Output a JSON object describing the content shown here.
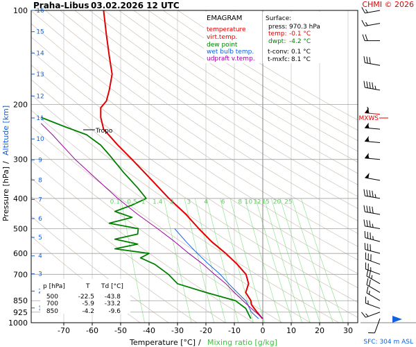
{
  "header": {
    "station": "Praha-Libus",
    "datetime": "03.02.2026 12 UTC",
    "copyright": "CHMI © 2026"
  },
  "legend": {
    "title": "EMAGRAM",
    "items": [
      {
        "label": "temperature",
        "color": "#e00000"
      },
      {
        "label": "virt.temp.",
        "color": "#e00000"
      },
      {
        "label": "dew point",
        "color": "#008000"
      },
      {
        "label": "wet bulb temp.",
        "color": "#1060e0"
      },
      {
        "label": "udpraft v.temp.",
        "color": "#a000a0"
      }
    ]
  },
  "surface": {
    "title": "Surface:",
    "rows": [
      {
        "label": "press:",
        "value": "970.3 hPa",
        "color": "#000000"
      },
      {
        "label": "temp:",
        "value": "-0.1 °C",
        "color": "#e00000"
      },
      {
        "label": "dwpt:",
        "value": "-4.2 °C",
        "color": "#008000"
      }
    ],
    "tconv": {
      "label": "t-conv:",
      "value": "0.1 °C"
    },
    "tmxfc": {
      "label": "t-mxfc:",
      "value": "8.1 °C"
    }
  },
  "table": {
    "headers": [
      "p [hPa]",
      "T",
      "Td [°C]"
    ],
    "rows": [
      [
        "500",
        "-22.5",
        "-43.8"
      ],
      [
        "700",
        "-5.9",
        "-33.2"
      ],
      [
        "850",
        "-4.2",
        "-9.6"
      ]
    ]
  },
  "annotations": {
    "tropo": "Tropo",
    "mxws": "MXWS",
    "sfc": "SFC: 304 m ASL"
  },
  "axes": {
    "ylabel_left": "Pressure [hPa]",
    "ylabel_sep": "/",
    "ylabel_right": "Altitude [km]",
    "xlabel_left": "Temperature [°C]",
    "xlabel_sep": "/",
    "xlabel_right": "Mixing ratio [g/kg]"
  },
  "chart_data": {
    "type": "line",
    "title": "Praha-Libus 03.02.2026 12 UTC",
    "xlabel": "Temperature [°C] / Mixing ratio [g/kg]",
    "ylabel": "Pressure [hPa] / Altitude [km]",
    "xlim": [
      -80,
      35
    ],
    "ylim": [
      1000,
      100
    ],
    "y_scale": "log",
    "x_ticks": [
      -70,
      -60,
      -50,
      -40,
      -30,
      -20,
      -10,
      0,
      10,
      20,
      30
    ],
    "pressure_ticks": [
      100,
      200,
      300,
      400,
      500,
      600,
      700,
      850,
      925,
      1000
    ],
    "altitude_ticks": [
      {
        "km": "1",
        "p": 897
      },
      {
        "km": "2",
        "p": 792
      },
      {
        "km": "3",
        "p": 697
      },
      {
        "km": "4",
        "p": 611
      },
      {
        "km": "5",
        "p": 533
      },
      {
        "km": "6",
        "p": 464
      },
      {
        "km": "7",
        "p": 403
      },
      {
        "km": "8",
        "p": 349
      },
      {
        "km": "9",
        "p": 301
      },
      {
        "km": "10",
        "p": 258
      },
      {
        "km": "11",
        "p": 221
      },
      {
        "km": "12",
        "p": 188
      },
      {
        "km": "13",
        "p": 160
      },
      {
        "km": "14",
        "p": 137
      },
      {
        "km": "15",
        "p": 117
      },
      {
        "km": "16",
        "p": 100
      }
    ],
    "mixing_ratio_labels": [
      "0.1",
      "0.5",
      "1",
      "1.4",
      "2",
      "3",
      "4",
      "6",
      "8",
      "10",
      "12",
      "15",
      "20",
      "25"
    ],
    "mixing_ratio_label_x": [
      -52,
      -46,
      -42,
      -37,
      -32,
      -26,
      -20,
      -14,
      -8,
      -5,
      -2,
      1,
      5,
      9
    ],
    "mixing_ratio_label_p": 420,
    "grid": true,
    "series": [
      {
        "name": "temperature",
        "color": "#e00000",
        "points": [
          [
            970.3,
            -0.1
          ],
          [
            925,
            -2
          ],
          [
            900,
            -3
          ],
          [
            875,
            -4
          ],
          [
            850,
            -4.2
          ],
          [
            800,
            -6
          ],
          [
            750,
            -5
          ],
          [
            700,
            -5.9
          ],
          [
            650,
            -9
          ],
          [
            600,
            -13
          ],
          [
            550,
            -18
          ],
          [
            500,
            -22.5
          ],
          [
            450,
            -27
          ],
          [
            400,
            -33
          ],
          [
            350,
            -39
          ],
          [
            300,
            -46
          ],
          [
            270,
            -51
          ],
          [
            240,
            -56
          ],
          [
            220,
            -57
          ],
          [
            205,
            -57
          ],
          [
            195,
            -55
          ],
          [
            180,
            -54
          ],
          [
            160,
            -53
          ],
          [
            140,
            -54
          ],
          [
            120,
            -55
          ],
          [
            100,
            -56
          ]
        ]
      },
      {
        "name": "dew point",
        "color": "#008000",
        "points": [
          [
            970.3,
            -4.2
          ],
          [
            900,
            -6
          ],
          [
            850,
            -9.6
          ],
          [
            800,
            -20
          ],
          [
            750,
            -30
          ],
          [
            700,
            -33.2
          ],
          [
            650,
            -38
          ],
          [
            620,
            -43
          ],
          [
            600,
            -40
          ],
          [
            580,
            -52
          ],
          [
            560,
            -44
          ],
          [
            540,
            -52
          ],
          [
            520,
            -44
          ],
          [
            500,
            -43.8
          ],
          [
            480,
            -54
          ],
          [
            460,
            -46
          ],
          [
            440,
            -52
          ],
          [
            420,
            -46
          ],
          [
            400,
            -41
          ],
          [
            370,
            -44
          ],
          [
            330,
            -49
          ],
          [
            290,
            -54
          ],
          [
            270,
            -57
          ],
          [
            250,
            -62
          ],
          [
            235,
            -70
          ],
          [
            220,
            -78
          ]
        ]
      },
      {
        "name": "wet bulb temp.",
        "color": "#1060e0",
        "points": [
          [
            970.3,
            -1.5
          ],
          [
            925,
            -4
          ],
          [
            850,
            -6
          ],
          [
            800,
            -9
          ],
          [
            750,
            -12
          ],
          [
            700,
            -15
          ],
          [
            650,
            -19
          ],
          [
            600,
            -23
          ],
          [
            550,
            -27
          ],
          [
            500,
            -31
          ]
        ]
      },
      {
        "name": "udpraft v.temp.",
        "color": "#a000a0",
        "points": [
          [
            970.3,
            0.1
          ],
          [
            900,
            -4
          ],
          [
            850,
            -7
          ],
          [
            800,
            -10
          ],
          [
            750,
            -13
          ],
          [
            700,
            -17
          ],
          [
            650,
            -21
          ],
          [
            600,
            -26
          ],
          [
            550,
            -31
          ],
          [
            500,
            -37
          ],
          [
            450,
            -44
          ],
          [
            400,
            -51
          ],
          [
            350,
            -58
          ],
          [
            300,
            -66
          ],
          [
            250,
            -74
          ],
          [
            230,
            -78
          ]
        ]
      }
    ],
    "wind_barbs": [
      {
        "p": 970,
        "dir": 200,
        "spd": 10
      },
      {
        "p": 925,
        "dir": 250,
        "spd": 15
      },
      {
        "p": 900,
        "dir": 290,
        "spd": 15
      },
      {
        "p": 850,
        "dir": 300,
        "spd": 15
      },
      {
        "p": 800,
        "dir": 300,
        "spd": 20
      },
      {
        "p": 750,
        "dir": 300,
        "spd": 25
      },
      {
        "p": 700,
        "dir": 290,
        "spd": 25
      },
      {
        "p": 650,
        "dir": 290,
        "spd": 30
      },
      {
        "p": 600,
        "dir": 285,
        "spd": 30
      },
      {
        "p": 550,
        "dir": 285,
        "spd": 35
      },
      {
        "p": 500,
        "dir": 280,
        "spd": 35
      },
      {
        "p": 450,
        "dir": 280,
        "spd": 40
      },
      {
        "p": 400,
        "dir": 280,
        "spd": 45
      },
      {
        "p": 350,
        "dir": 280,
        "spd": 50
      },
      {
        "p": 300,
        "dir": 275,
        "spd": 55
      },
      {
        "p": 265,
        "dir": 275,
        "spd": 55
      },
      {
        "p": 240,
        "dir": 275,
        "spd": 55
      },
      {
        "p": 215,
        "dir": 275,
        "spd": 60
      },
      {
        "p": 180,
        "dir": 280,
        "spd": 45
      },
      {
        "p": 150,
        "dir": 280,
        "spd": 30
      },
      {
        "p": 125,
        "dir": 270,
        "spd": 20
      },
      {
        "p": 110,
        "dir": 260,
        "spd": 15
      },
      {
        "p": 100,
        "dir": 260,
        "spd": 15
      }
    ]
  }
}
